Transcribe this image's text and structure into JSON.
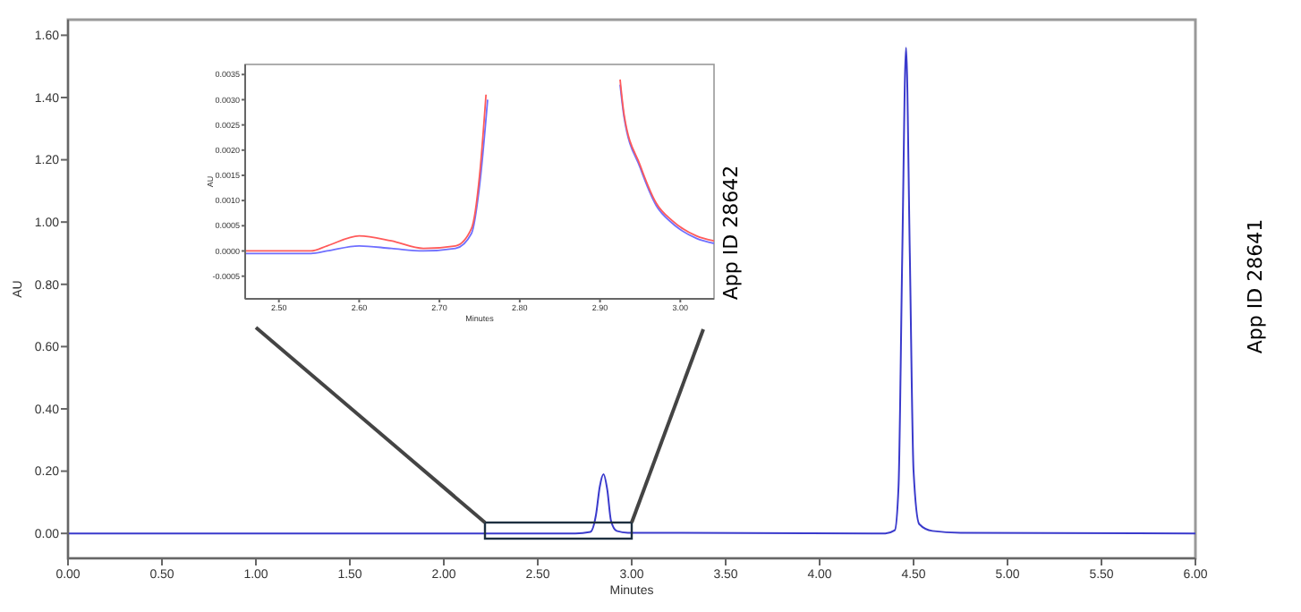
{
  "chart_data": [
    {
      "type": "line",
      "xlabel": "Minutes",
      "ylabel": "AU",
      "xlim": [
        0,
        6
      ],
      "ylim": [
        -0.08,
        1.65
      ],
      "xticks": [
        {
          "value": 0,
          "label": "0.00"
        },
        {
          "value": 0.5,
          "label": "0.50"
        },
        {
          "value": 1,
          "label": "1.00"
        },
        {
          "value": 1.5,
          "label": "1.50"
        },
        {
          "value": 2,
          "label": "2.00"
        },
        {
          "value": 2.5,
          "label": "2.50"
        },
        {
          "value": 3,
          "label": "3.00"
        },
        {
          "value": 3.5,
          "label": "3.50"
        },
        {
          "value": 4,
          "label": "4.00"
        },
        {
          "value": 4.5,
          "label": "4.50"
        },
        {
          "value": 5,
          "label": "5.00"
        },
        {
          "value": 5.5,
          "label": "5.50"
        },
        {
          "value": 6,
          "label": "6.00"
        }
      ],
      "yticks": [
        {
          "value": 0,
          "label": "0.00"
        },
        {
          "value": 0.2,
          "label": "0.20"
        },
        {
          "value": 0.4,
          "label": "0.40"
        },
        {
          "value": 0.6,
          "label": "0.60"
        },
        {
          "value": 0.8,
          "label": "0.80"
        },
        {
          "value": 1,
          "label": "1.00"
        },
        {
          "value": 1.2,
          "label": "1.20"
        },
        {
          "value": 1.4,
          "label": "1.40"
        },
        {
          "value": 1.6,
          "label": "1.60"
        }
      ],
      "x": [
        0,
        2.7,
        2.78,
        2.81,
        2.83,
        2.85,
        2.87,
        2.89,
        2.92,
        2.98,
        4.35,
        4.4,
        4.42,
        4.44,
        4.46,
        4.48,
        4.5,
        4.53,
        4.6,
        4.75,
        6
      ],
      "series": [
        {
          "color": "#3a3acc",
          "values": [
            0,
            0,
            0.005,
            0.06,
            0.15,
            0.19,
            0.14,
            0.04,
            0.008,
            0.002,
            0,
            0.01,
            0.15,
            0.9,
            1.56,
            0.9,
            0.2,
            0.03,
            0.008,
            0.002,
            0
          ]
        }
      ],
      "annotations": [
        "App ID 28641"
      ],
      "grid": false
    },
    {
      "type": "line",
      "xlabel": "Minutes",
      "ylabel": "AU",
      "xlim": [
        2.458,
        3.042
      ],
      "ylim": [
        -0.00095,
        0.0037
      ],
      "xticks": [
        {
          "value": 2.5,
          "label": "2.50"
        },
        {
          "value": 2.6,
          "label": "2.60"
        },
        {
          "value": 2.7,
          "label": "2.70"
        },
        {
          "value": 2.8,
          "label": "2.80"
        },
        {
          "value": 2.9,
          "label": "2.90"
        },
        {
          "value": 3,
          "label": "3.00"
        }
      ],
      "yticks": [
        {
          "value": -0.0005,
          "label": "-0.0005"
        },
        {
          "value": 0,
          "label": "0.0000"
        },
        {
          "value": 0.0005,
          "label": "0.0005"
        },
        {
          "value": 0.001,
          "label": "0.0010"
        },
        {
          "value": 0.0015,
          "label": "0.0015"
        },
        {
          "value": 0.002,
          "label": "0.0020"
        },
        {
          "value": 0.0025,
          "label": "0.0025"
        },
        {
          "value": 0.003,
          "label": "0.0030"
        },
        {
          "value": 0.0035,
          "label": "0.0035"
        }
      ],
      "series": [
        {
          "color": "#6f6fff",
          "x": [
            2.458,
            2.54,
            2.56,
            2.6,
            2.64,
            2.68,
            2.72,
            2.74,
            2.75,
            2.76
          ],
          "values": [
            -5e-05,
            -5e-05,
            0,
            0.0001,
            5e-05,
            0,
            5e-05,
            0.00035,
            0.0013,
            0.003
          ]
        },
        {
          "color": "#6f6fff",
          "x": [
            2.925,
            2.93,
            2.95,
            2.97,
            2.99,
            3.02,
            3.042
          ],
          "values": [
            0.0033,
            0.00265,
            0.00165,
            0.0009,
            0.00055,
            0.00025,
            0.00015
          ]
        },
        {
          "color": "#ff5a5a",
          "x": [
            2.458,
            2.54,
            2.56,
            2.6,
            2.64,
            2.68,
            2.72,
            2.74,
            2.75,
            2.758
          ],
          "values": [
            0,
            0,
            0.0001,
            0.0003,
            0.0002,
            5e-05,
            0.0001,
            0.00045,
            0.0015,
            0.0031
          ]
        },
        {
          "color": "#ff5a5a",
          "x": [
            2.925,
            2.93,
            2.95,
            2.97,
            2.99,
            3.02,
            3.042
          ],
          "values": [
            0.0034,
            0.0027,
            0.0017,
            0.00095,
            0.0006,
            0.0003,
            0.0002
          ]
        }
      ],
      "annotations": [
        "App ID 28642"
      ],
      "grid": false
    }
  ]
}
